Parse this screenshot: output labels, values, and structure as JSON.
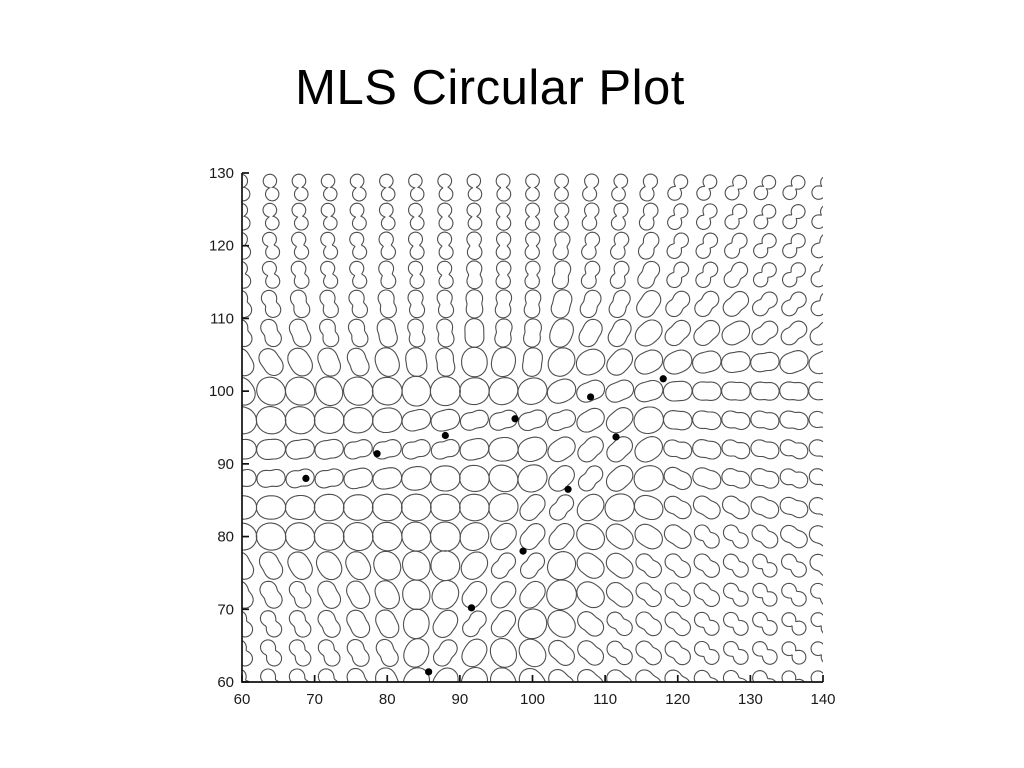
{
  "slide": {
    "title": "MLS Circular Plot"
  },
  "chart_data": {
    "type": "scatter",
    "title": "MLS Circular Plot",
    "xlabel": "",
    "ylabel": "",
    "xlim": [
      60,
      140
    ],
    "ylim": [
      60,
      130
    ],
    "x_ticks": [
      60,
      70,
      80,
      90,
      100,
      110,
      120,
      130,
      140
    ],
    "y_ticks": [
      60,
      70,
      80,
      90,
      100,
      110,
      120,
      130
    ],
    "grid": false,
    "legend": null,
    "control_points": [
      [
        68.8,
        88.0
      ],
      [
        78.6,
        91.4
      ],
      [
        88.0,
        93.9
      ],
      [
        97.6,
        96.2
      ],
      [
        108.0,
        99.2
      ],
      [
        118.0,
        101.7
      ],
      [
        111.5,
        93.7
      ],
      [
        104.9,
        86.5
      ],
      [
        98.7,
        78.0
      ],
      [
        91.6,
        70.2
      ],
      [
        85.7,
        61.4
      ]
    ],
    "glyph_grid": {
      "x_start": 60,
      "x_step": 4,
      "x_count": 21,
      "y_start": 60,
      "y_step": 4,
      "y_count": 18
    },
    "glyph_anchors": [
      [
        62,
        127,
        100,
        0.9
      ],
      [
        72,
        127,
        100,
        0.89
      ],
      [
        82,
        127,
        98,
        0.88
      ],
      [
        92,
        127,
        95,
        0.87
      ],
      [
        102,
        127,
        90,
        0.85
      ],
      [
        112,
        127,
        80,
        0.83
      ],
      [
        122,
        127,
        62,
        0.83
      ],
      [
        132,
        127,
        53,
        0.86
      ],
      [
        140,
        127,
        49,
        0.88
      ],
      [
        62,
        118,
        104,
        0.78
      ],
      [
        74,
        118,
        103,
        0.78
      ],
      [
        86,
        118,
        97,
        0.78
      ],
      [
        98,
        118,
        88,
        0.76
      ],
      [
        110,
        118,
        74,
        0.72
      ],
      [
        122,
        118,
        57,
        0.74
      ],
      [
        134,
        118,
        50,
        0.78
      ],
      [
        62,
        110,
        110,
        0.6
      ],
      [
        74,
        110,
        106,
        0.62
      ],
      [
        86,
        110,
        97,
        0.65
      ],
      [
        98,
        110,
        86,
        0.62
      ],
      [
        110,
        110,
        68,
        0.55
      ],
      [
        122,
        110,
        50,
        0.55
      ],
      [
        134,
        110,
        42,
        0.6
      ],
      [
        140,
        112,
        45,
        0.68
      ],
      [
        64,
        104,
        125,
        0.35
      ],
      [
        76,
        104,
        112,
        0.4
      ],
      [
        88,
        104,
        98,
        0.45
      ],
      [
        100,
        104,
        84,
        0.45
      ],
      [
        110,
        105,
        55,
        0.4
      ],
      [
        118,
        104,
        30,
        0.25
      ],
      [
        66,
        99,
        165,
        0.08
      ],
      [
        78,
        100,
        175,
        0.1
      ],
      [
        90,
        101,
        5,
        0.12
      ],
      [
        100,
        102,
        10,
        0.12
      ],
      [
        108,
        104,
        20,
        0.18
      ],
      [
        62,
        88,
        5,
        0.48
      ],
      [
        70,
        89,
        10,
        0.5
      ],
      [
        78,
        91,
        13,
        0.5
      ],
      [
        86,
        93,
        14,
        0.52
      ],
      [
        94,
        95,
        15,
        0.52
      ],
      [
        102,
        97,
        16,
        0.5
      ],
      [
        110,
        99,
        18,
        0.48
      ],
      [
        117,
        101,
        22,
        0.42
      ],
      [
        62,
        81,
        175,
        0.1
      ],
      [
        72,
        83,
        0,
        0.1
      ],
      [
        82,
        84,
        175,
        0.1
      ],
      [
        90,
        86,
        170,
        0.12
      ],
      [
        96,
        89,
        150,
        0.15
      ],
      [
        116,
        97,
        10,
        0.08
      ],
      [
        122,
        96,
        172,
        0.45
      ],
      [
        130,
        95,
        170,
        0.5
      ],
      [
        118,
        100,
        177,
        0.4
      ],
      [
        126,
        100,
        176,
        0.42
      ],
      [
        134,
        99,
        173,
        0.45
      ],
      [
        140,
        97,
        172,
        0.52
      ],
      [
        124,
        104,
        15,
        0.3
      ],
      [
        132,
        103,
        8,
        0.4
      ],
      [
        138,
        104,
        25,
        0.3
      ],
      [
        112,
        94,
        45,
        0.45
      ],
      [
        108,
        89,
        48,
        0.5
      ],
      [
        103,
        83,
        50,
        0.5
      ],
      [
        98,
        76,
        50,
        0.5
      ],
      [
        93,
        68,
        52,
        0.5
      ],
      [
        88,
        63,
        54,
        0.45
      ],
      [
        112,
        96,
        40,
        0.3
      ],
      [
        114,
        91,
        45,
        0.35
      ],
      [
        84,
        77,
        120,
        0.1
      ],
      [
        76,
        72,
        118,
        0.35
      ],
      [
        68,
        70,
        118,
        0.55
      ],
      [
        62,
        66,
        119,
        0.65
      ],
      [
        70,
        62,
        120,
        0.6
      ],
      [
        78,
        64,
        118,
        0.5
      ],
      [
        62,
        74,
        118,
        0.45
      ],
      [
        120,
        92,
        168,
        0.5
      ],
      [
        128,
        91,
        166,
        0.52
      ],
      [
        136,
        90,
        164,
        0.55
      ],
      [
        140,
        88,
        162,
        0.55
      ],
      [
        120,
        86,
        150,
        0.48
      ],
      [
        126,
        80,
        140,
        0.62
      ],
      [
        132,
        74,
        139,
        0.72
      ],
      [
        138,
        66,
        140,
        0.82
      ],
      [
        140,
        60,
        140,
        0.85
      ],
      [
        126,
        66,
        140,
        0.68
      ],
      [
        118,
        74,
        140,
        0.55
      ],
      [
        112,
        66,
        141,
        0.55
      ],
      [
        104,
        62,
        138,
        0.4
      ],
      [
        110,
        78,
        142,
        0.35
      ],
      [
        96,
        62,
        120,
        0.2
      ],
      [
        86,
        60,
        60,
        0.15
      ],
      [
        60,
        60,
        118,
        0.7
      ]
    ],
    "colors": {
      "background": "#ffffff",
      "glyph_stroke": "#4f4f4f",
      "axis": "#111111",
      "tick_label": "#1a1a1a",
      "dot": "#000000",
      "title": "#000000"
    }
  }
}
